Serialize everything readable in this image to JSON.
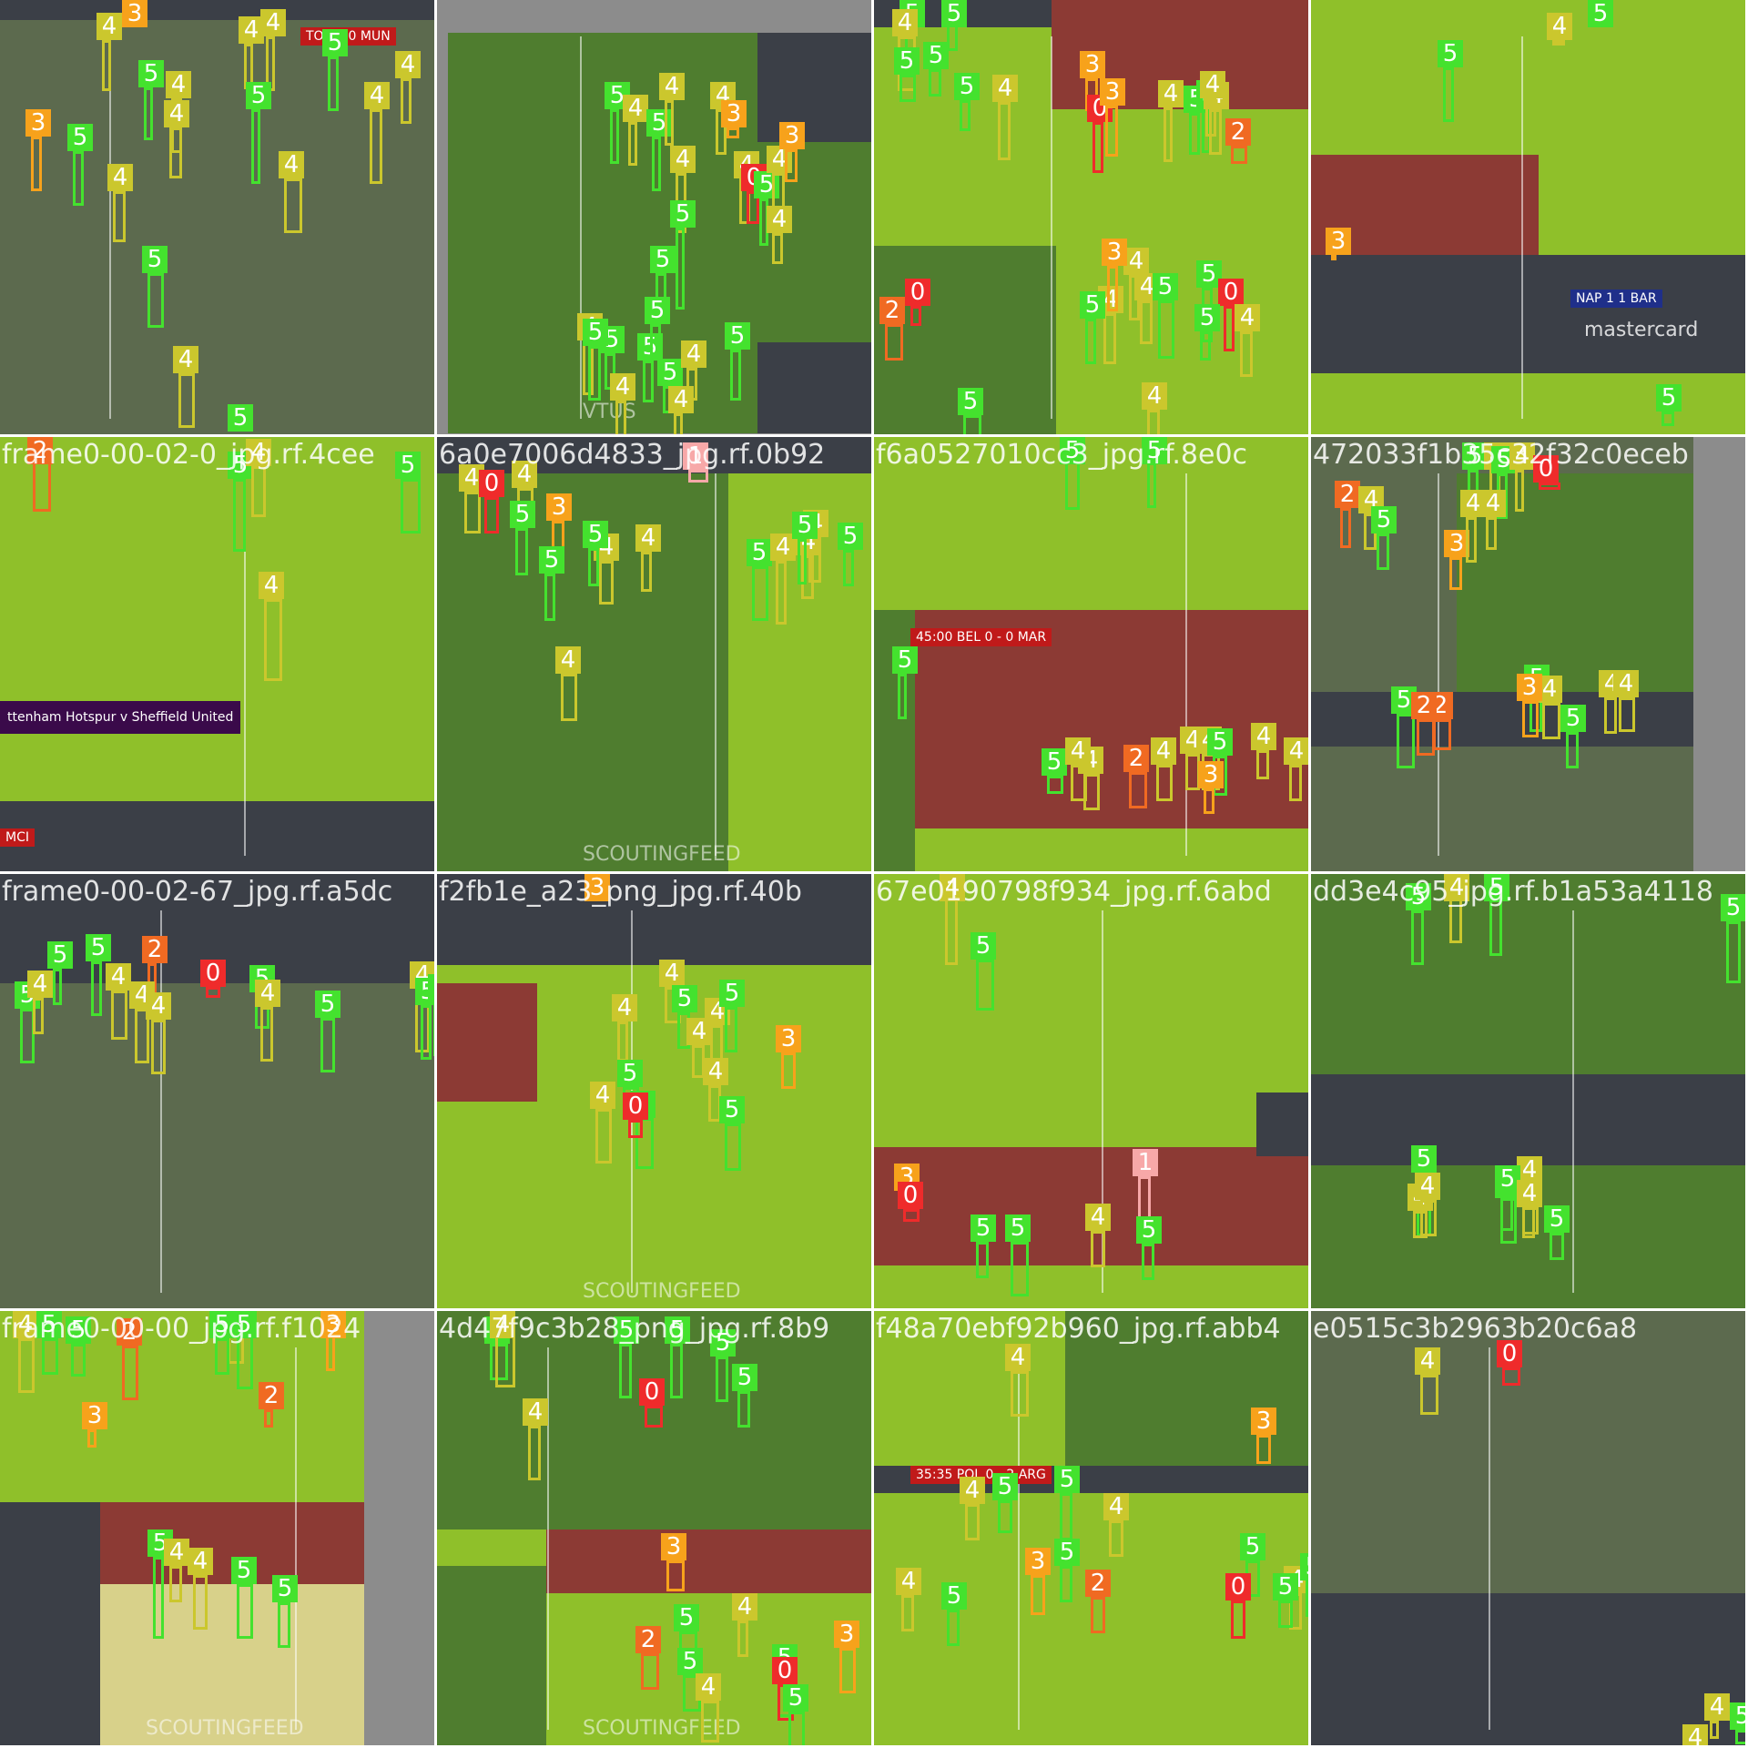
{
  "mosaic": {
    "colors": {
      "0": "#ef2b2b",
      "1": "#f7a8a8",
      "2": "#f06a22",
      "3": "#f7a21b",
      "4": "#cbc72d",
      "5": "#44e22e",
      "pitch_light": "#8fc02a",
      "pitch_dark": "#4f7d2f",
      "pitch_gray": "#5c6a4e",
      "pad": "#8c8c8c",
      "crowd": "#3b3f47"
    },
    "tiles": [
      {
        "id": "r0c0",
        "filename": "",
        "overlays": [
          {
            "text": "TOT 0-0 MUN",
            "kind": "scorebug"
          }
        ],
        "labels": [
          "4",
          "3",
          "4",
          "4",
          "5",
          "4",
          "5",
          "4",
          "4",
          "5",
          "3",
          "5",
          "4",
          "4",
          "5",
          "4",
          "5",
          "4"
        ]
      },
      {
        "id": "r0c1",
        "filename": "",
        "overlays": [
          {
            "text": "VTUS",
            "kind": "tag"
          }
        ],
        "labels": [
          "5",
          "4",
          "5",
          "4",
          "4",
          "3",
          "4",
          "5",
          "5",
          "4",
          "0",
          "5",
          "4",
          "4",
          "5",
          "5",
          "4",
          "5",
          "5",
          "4",
          "5",
          "4",
          "4",
          "5",
          "3"
        ]
      },
      {
        "id": "r0c2",
        "filename": "",
        "overlays": [],
        "labels": [
          "5",
          "5",
          "4",
          "5",
          "5",
          "4",
          "5",
          "3",
          "0",
          "3",
          "4",
          "5",
          "5",
          "4",
          "4",
          "2",
          "0",
          "2",
          "4",
          "5",
          "4",
          "5",
          "4",
          "3",
          "5",
          "0",
          "5",
          "4",
          "5",
          "4"
        ]
      },
      {
        "id": "r0c3",
        "filename": "",
        "overlays": [
          {
            "text": "NAP 1 1 BAR",
            "kind": "scorebug"
          },
          {
            "text": "mastercard",
            "kind": "board"
          }
        ],
        "labels": [
          "5",
          "4",
          "5",
          "3",
          "5"
        ]
      },
      {
        "id": "r1c0",
        "filename": "frame0-00-02-0_jpg.rf.4cee",
        "overlays": [
          {
            "text": "ttenham Hotspur v Sheffield United",
            "kind": "banner"
          },
          {
            "text": "MCI",
            "kind": "scorebug"
          }
        ],
        "labels": [
          "2",
          "5",
          "4",
          "5",
          "4"
        ]
      },
      {
        "id": "r1c1",
        "filename": "6a0e7006d4833_jpg.rf.0b92",
        "overlays": [
          {
            "text": "SCOUTINGFEED",
            "kind": "tag"
          }
        ],
        "labels": [
          "4",
          "0",
          "4",
          "1",
          "5",
          "3",
          "5",
          "4",
          "5",
          "4",
          "4",
          "5",
          "4",
          "5",
          "4",
          "4",
          "5"
        ]
      },
      {
        "id": "r1c2",
        "filename": "f6a0527010cc3_jpg.rf.8e0c",
        "overlays": [
          {
            "text": "45:00 BEL 0 - 0 MAR",
            "kind": "scorebug"
          }
        ],
        "labels": [
          "5",
          "5",
          "5",
          "4",
          "5",
          "4",
          "2",
          "4",
          "4",
          "4",
          "5",
          "3",
          "4",
          "4"
        ]
      },
      {
        "id": "r1c3",
        "filename": "472033f1b35c32f32c0eceb",
        "overlays": [],
        "labels": [
          "5",
          "4",
          "5",
          "4",
          "4",
          "2",
          "4",
          "5",
          "3",
          "4",
          "0",
          "5",
          "2",
          "2",
          "5",
          "4",
          "3",
          "4",
          "5",
          "4"
        ]
      },
      {
        "id": "r2c0",
        "filename": "frame0-00-02-67_jpg.rf.a5dc",
        "overlays": [],
        "labels": [
          "5",
          "4",
          "5",
          "5",
          "2",
          "4",
          "0",
          "4",
          "5",
          "4",
          "4",
          "5",
          "4",
          "5",
          "5"
        ]
      },
      {
        "id": "r2c1",
        "filename": "f2fb1e_a23_png_jpg.rf.40b",
        "overlays": [
          {
            "text": "SCOUTINGFEED",
            "kind": "tag"
          }
        ],
        "labels": [
          "3",
          "4",
          "4",
          "5",
          "4",
          "4",
          "5",
          "3",
          "4",
          "5",
          "5",
          "4",
          "0",
          "5"
        ]
      },
      {
        "id": "r2c2",
        "filename": "67e0190798f934_jpg.rf.6abd",
        "overlays": [],
        "labels": [
          "4",
          "5",
          "3",
          "0",
          "1",
          "5",
          "5",
          "4",
          "5"
        ]
      },
      {
        "id": "r2c3",
        "filename": "dd3e4c95_jpg.rf.b1a53a4118",
        "overlays": [],
        "labels": [
          "5",
          "4",
          "5",
          "5",
          "5",
          "4",
          "5",
          "4",
          "4",
          "5",
          "4",
          "5"
        ]
      },
      {
        "id": "r3c0",
        "filename": "frame0-00-00_jpg.rf.f1024",
        "overlays": [
          {
            "text": "SCOUTINGFEED",
            "kind": "tag"
          }
        ],
        "labels": [
          "4",
          "5",
          "5",
          "2",
          "4",
          "5",
          "3",
          "3",
          "2",
          "5",
          "5",
          "4",
          "4",
          "5",
          "5"
        ]
      },
      {
        "id": "r3c1",
        "filename": "4d47f9c3b28_png_jpg.rf.8b9",
        "overlays": [
          {
            "text": "SCOUTINGFEED",
            "kind": "tag"
          }
        ],
        "labels": [
          "5",
          "4",
          "5",
          "5",
          "5",
          "0",
          "5",
          "4",
          "3",
          "2",
          "5",
          "4",
          "5",
          "3",
          "4",
          "5",
          "0",
          "5"
        ]
      },
      {
        "id": "r3c2",
        "filename": "f48a70ebf92b960_jpg.rf.abb4",
        "overlays": [
          {
            "text": "35:35 POL 0 - 2 ARG",
            "kind": "scorebug"
          }
        ],
        "labels": [
          "4",
          "3",
          "4",
          "5",
          "5",
          "4",
          "5",
          "4",
          "3",
          "5",
          "2",
          "5",
          "0",
          "4",
          "5",
          "5"
        ]
      },
      {
        "id": "r3c3",
        "filename": "e0515c3b2963b20c6a8",
        "overlays": [],
        "labels": [
          "4",
          "4",
          "0",
          "4",
          "5"
        ]
      }
    ]
  }
}
